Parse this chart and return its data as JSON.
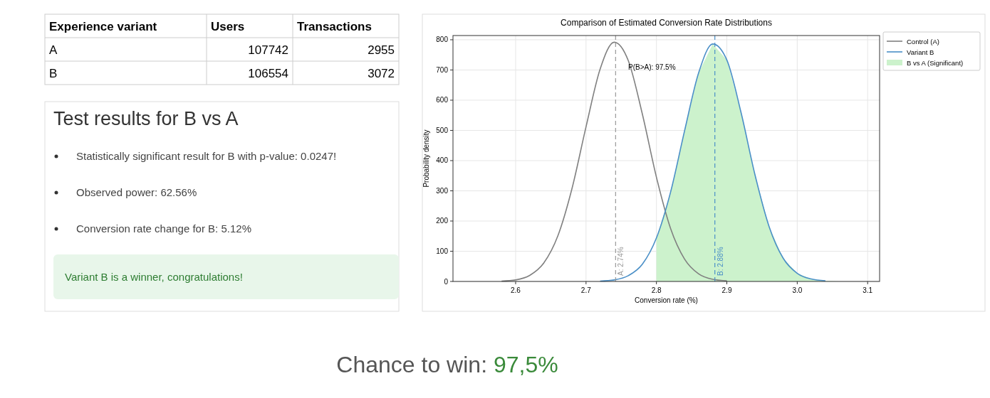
{
  "chart_data": [
    {
      "type": "other",
      "xlabel": "Experience variant",
      "categories": [
        "A",
        "B"
      ],
      "data_labels": true,
      "series": [
        {
          "name": "Users",
          "values": [
            107742,
            106554
          ]
        },
        {
          "name": "Transactions",
          "values": [
            2955,
            3072
          ]
        }
      ]
    },
    {
      "type": "other",
      "title": "Test results for B vs A",
      "annotations": [
        "Statistically significant result for B with p-value: 0.0247!",
        "Observed power: 62.56%",
        "Conversion rate change for B: 5.12%",
        {
          "text": "Variant B is a winner, congratulations!"
        }
      ]
    },
    {
      "type": "line",
      "title": "Comparison of Estimated Conversion Rate Distributions",
      "xlabel": "Conversion rate (%)",
      "ylabel": "Probability density",
      "xlim": [
        2.511,
        3.117
      ],
      "xticks": [
        2.6,
        2.7,
        2.8,
        2.9,
        {
          "value": 3,
          "label": "3.0"
        },
        3.1
      ],
      "ylim": [
        0,
        814
      ],
      "yticks": [
        0,
        100,
        200,
        300,
        400,
        500,
        600,
        700,
        800
      ],
      "grid": true,
      "legend": "top right",
      "marker": "none",
      "series": [
        {
          "type": "area",
          "name": "B vs A (Significant)",
          "color": "#ccf2cc",
          "x": [
            2.8,
            2.82,
            2.84,
            2.86,
            2.88,
            2.9,
            2.92,
            2.94,
            2.96,
            2.98,
            3.0,
            3.02,
            3.04,
            3.06,
            3.08,
            3.1
          ],
          "values": [
            144,
            295,
            499,
            691,
            786,
            733,
            561,
            353,
            182,
            77,
            27,
            8,
            2,
            0,
            0,
            0
          ]
        },
        {
          "name": "Control (A)",
          "color": "#808080",
          "x": [
            2.58,
            2.6,
            2.62,
            2.64,
            2.66,
            2.68,
            2.7,
            2.72,
            2.74,
            2.76,
            2.78,
            2.8,
            2.82,
            2.84,
            2.86,
            2.88,
            2.9
          ],
          "values": [
            1,
            5,
            20,
            61,
            151,
            307,
            512,
            703,
            792,
            731,
            554,
            345,
            176,
            74,
            25,
            7,
            2
          ]
        },
        {
          "name": "Variant B",
          "color": "#4a8fc7",
          "x": [
            2.72,
            2.74,
            2.76,
            2.78,
            2.8,
            2.82,
            2.84,
            2.86,
            2.88,
            2.9,
            2.92,
            2.94,
            2.96,
            2.98,
            3.0,
            3.02,
            3.04
          ],
          "values": [
            1,
            5,
            19,
            57,
            144,
            295,
            499,
            691,
            786,
            733,
            561,
            353,
            182,
            77,
            27,
            8,
            2
          ]
        }
      ],
      "ref_lines": [
        {
          "axis": "x",
          "value": 2.742,
          "label": "A: 2.74%",
          "color": "#999999",
          "line_style": "dashed"
        },
        {
          "axis": "x",
          "value": 2.883,
          "label": "B: 2.88%",
          "color": "#4a8fc7",
          "line_style": "dashed"
        }
      ],
      "annotations": [
        {
          "text": "P(B>A): 97.5%",
          "x": 2.76,
          "y": 700
        }
      ]
    },
    {
      "type": "other",
      "title": "Chance to win:",
      "annotations": [
        "97,5%"
      ]
    }
  ]
}
